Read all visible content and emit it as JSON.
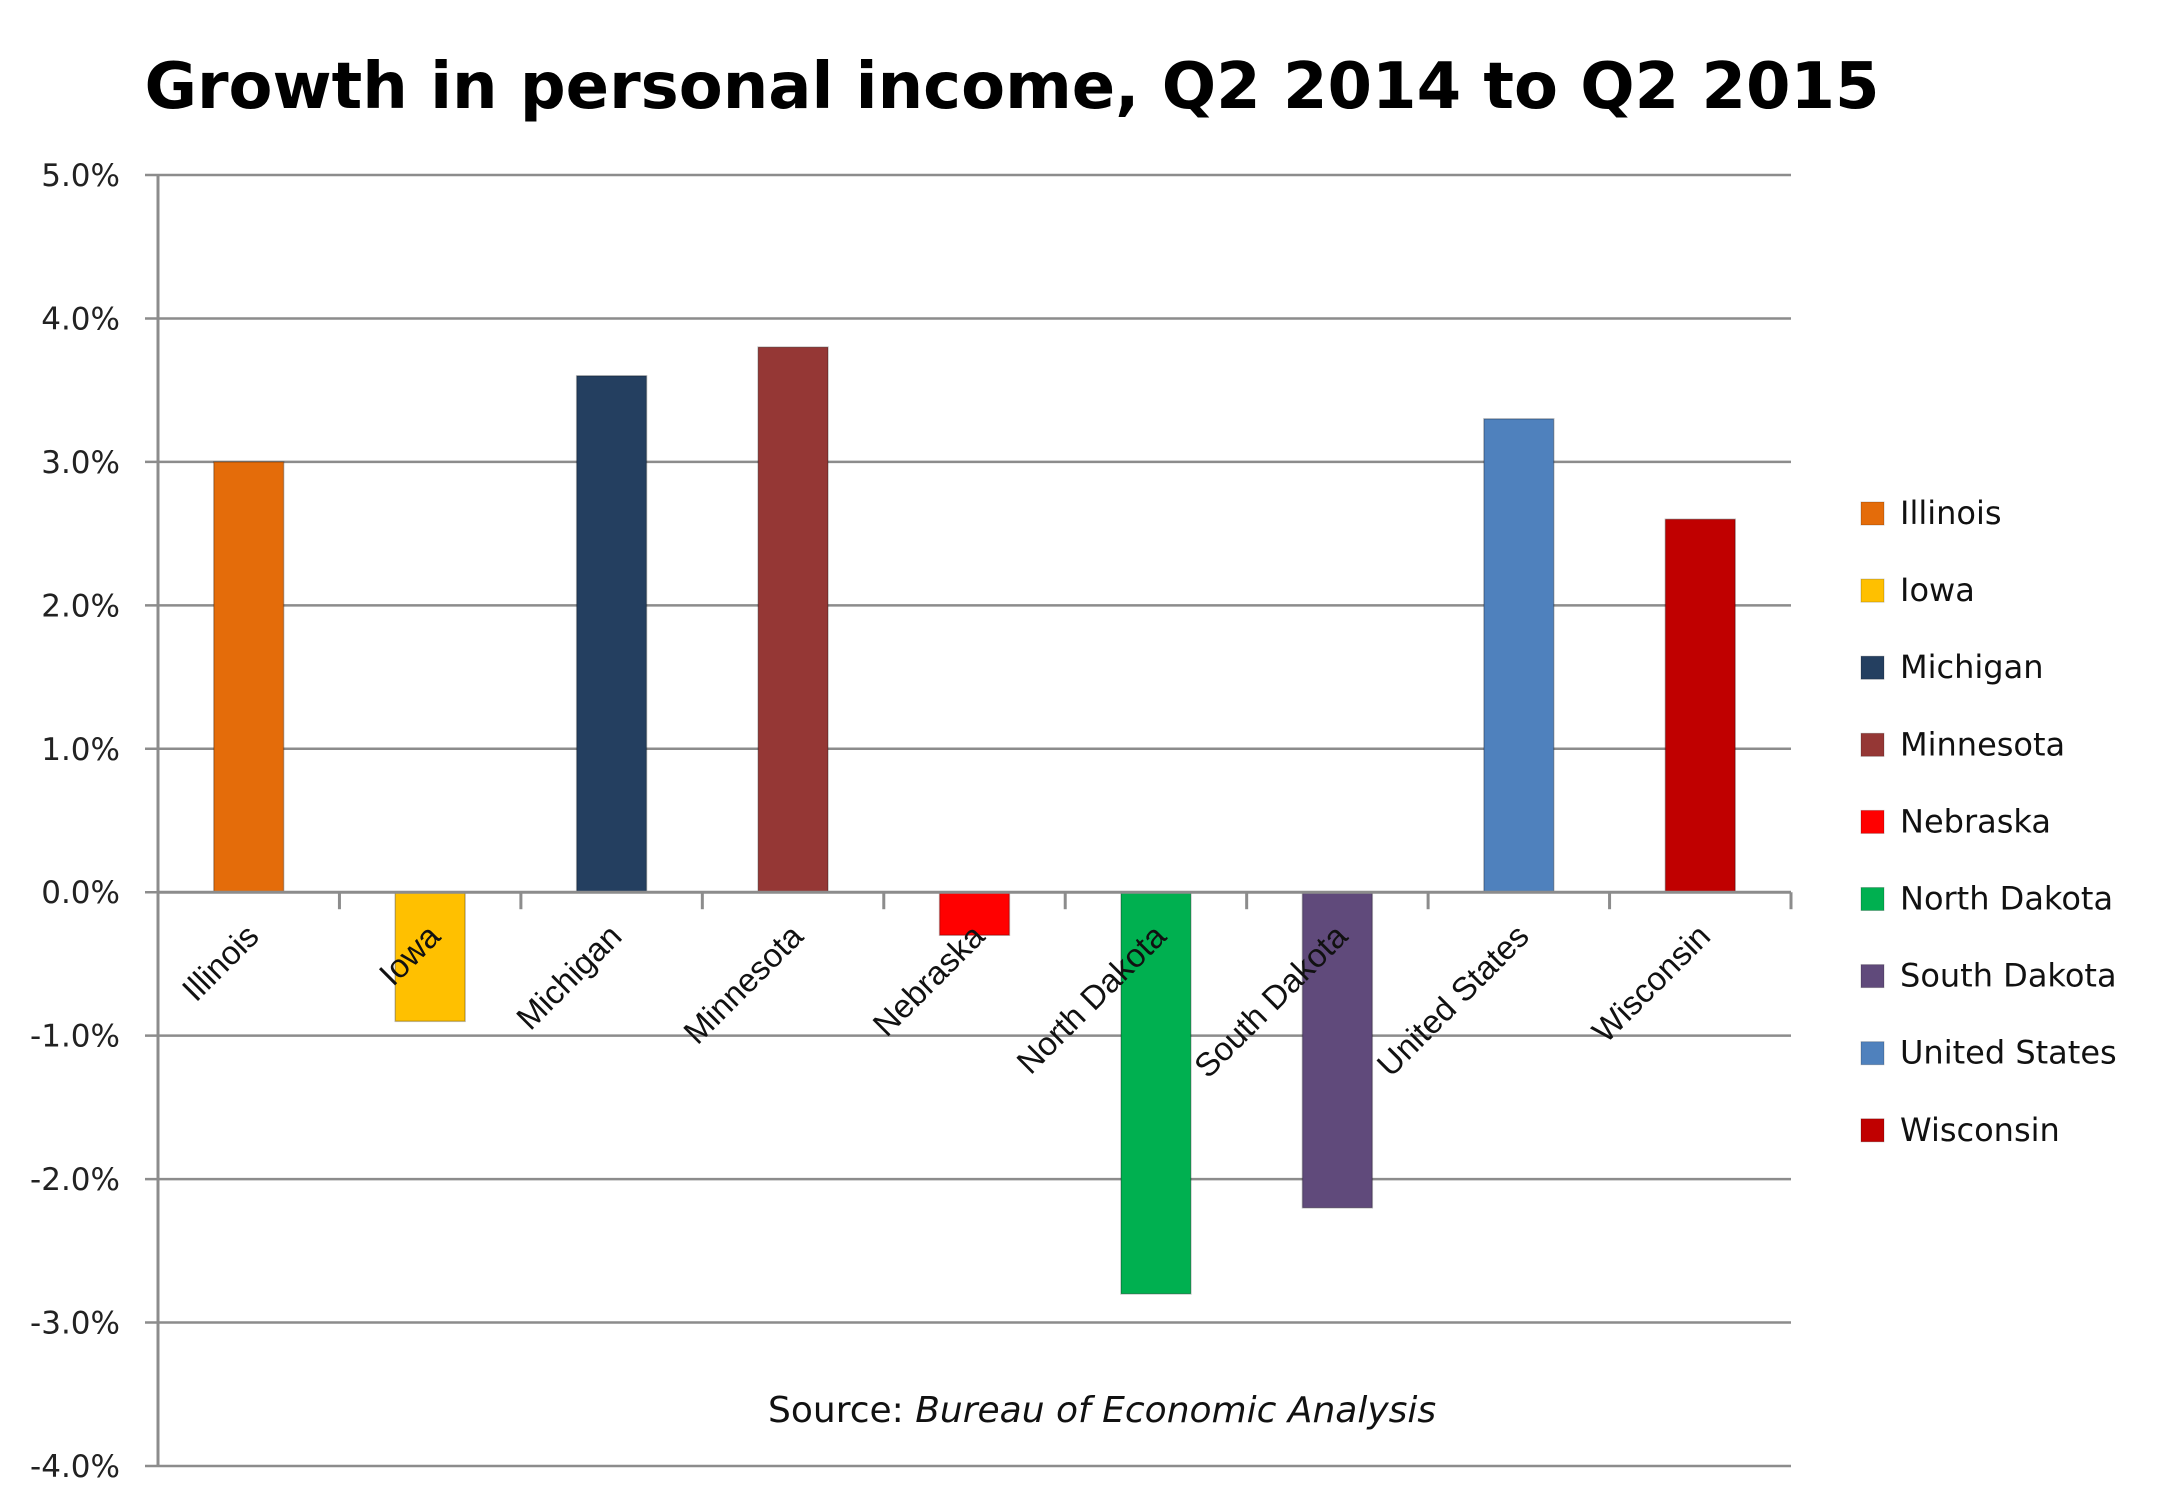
{
  "chart_data": {
    "type": "bar",
    "title": "Growth in personal income, Q2 2014 to Q2 2015",
    "xlabel": "",
    "ylabel": "",
    "ylim": [
      -4.0,
      5.0
    ],
    "yticks": [
      5.0,
      4.0,
      3.0,
      2.0,
      1.0,
      0.0,
      -1.0,
      -2.0,
      -3.0,
      -4.0
    ],
    "ytick_labels": [
      "5.0%",
      "4.0%",
      "3.0%",
      "2.0%",
      "1.0%",
      "0.0%",
      "-1.0%",
      "-2.0%",
      "-3.0%",
      "-4.0%"
    ],
    "grid": true,
    "legend_position": "right",
    "categories": [
      "Illinois",
      "Iowa",
      "Michigan",
      "Minnesota",
      "Nebraska",
      "North Dakota",
      "South Dakota",
      "United States",
      "Wisconsin"
    ],
    "values": [
      3.0,
      -0.9,
      3.6,
      3.8,
      -0.3,
      -2.8,
      -2.2,
      3.3,
      2.6
    ],
    "unit": "%",
    "colors": [
      "#e46c0a",
      "#ffc000",
      "#243f60",
      "#953735",
      "#ff0000",
      "#00b050",
      "#604a7b",
      "#4f81bd",
      "#c00000"
    ],
    "annotation": {
      "prefix": "Source: ",
      "source_name": "Bureau of Economic Analysis"
    }
  }
}
